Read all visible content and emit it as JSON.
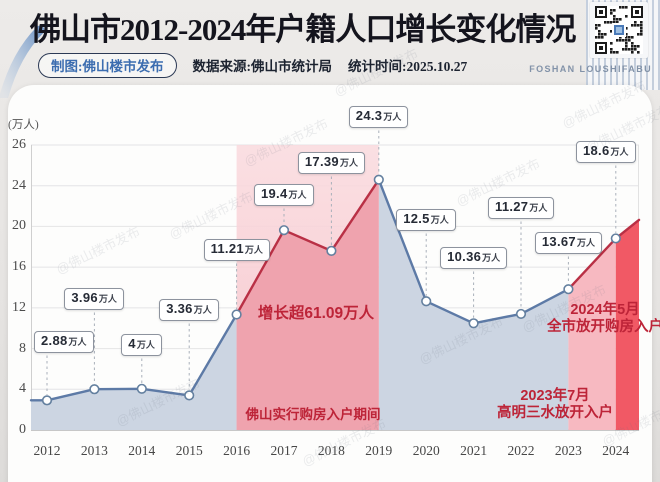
{
  "header": {
    "title": "佛山市2012-2024年户籍人口增长变化情况",
    "maker_badge": "制图:佛山楼市发布",
    "source": "数据来源:佛山市统计局",
    "stat_time": "统计时间:2025.10.27",
    "brand_latin": "FOSHAN LOUSHIFABU",
    "qr_icon": "qr-code"
  },
  "watermark_text": "@佛山楼市发布",
  "chart_data": {
    "type": "area",
    "title": "佛山市2012-2024年户籍人口增长变化情况",
    "unit_label": "(万人)",
    "value_suffix": "万人",
    "categories": [
      "2012",
      "2013",
      "2014",
      "2015",
      "2016",
      "2017",
      "2018",
      "2019",
      "2020",
      "2021",
      "2022",
      "2023",
      "2024"
    ],
    "values": [
      2.88,
      3.96,
      4,
      3.36,
      11.21,
      19.4,
      17.39,
      24.3,
      12.5,
      10.36,
      11.27,
      13.67,
      18.6
    ],
    "trailing_projection_value": 20.4,
    "y_ticks": [
      0,
      4,
      8,
      12,
      16,
      20,
      24,
      26
    ],
    "ylim": [
      0,
      26
    ],
    "grid": true,
    "highlight_periods": [
      {
        "from": "2016",
        "to": "2019",
        "style": "full-band"
      },
      {
        "from": "2023",
        "to": "2024",
        "style": "under-curve"
      },
      {
        "from": "2024",
        "to": "edge",
        "style": "under-curve-strong"
      }
    ],
    "red_line_periods": [
      [
        "2016",
        "2019"
      ],
      [
        "2023",
        "edge"
      ]
    ],
    "annotations": [
      {
        "lines": [
          "增长超61.09万人"
        ]
      },
      {
        "lines": [
          "佛山实行购房入户期间"
        ]
      },
      {
        "lines": [
          "2024年5月",
          "全市放开购房入户"
        ]
      },
      {
        "lines": [
          "2023年7月",
          "高明三水放开入户"
        ]
      }
    ],
    "colors": {
      "blue_line": "#5d7aa6",
      "red_line": "#b93045",
      "blue_area": "#ccd5e2",
      "pink_band_top": "#fadade",
      "pink_band_bottom": "#f6c4cb",
      "pink_area_deep": "#efa3ae",
      "pink_area_light": "#f7b9c1",
      "red_area": "#f15965",
      "annotation_red": "#bd2438",
      "marker_stroke": "#64809f",
      "grid": "#e4e4e6",
      "axis": "#b5b5b5"
    }
  }
}
